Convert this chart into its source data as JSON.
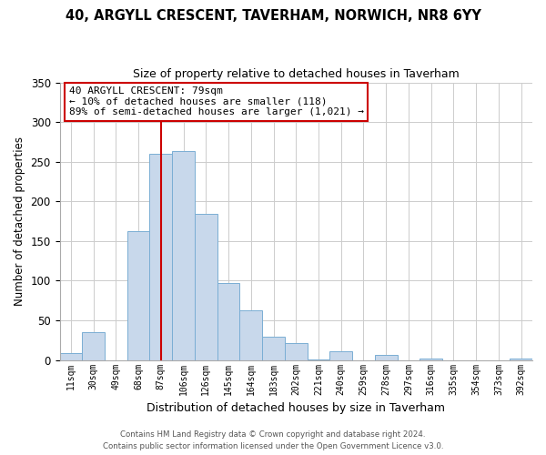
{
  "title": "40, ARGYLL CRESCENT, TAVERHAM, NORWICH, NR8 6YY",
  "subtitle": "Size of property relative to detached houses in Taverham",
  "xlabel": "Distribution of detached houses by size in Taverham",
  "ylabel": "Number of detached properties",
  "bin_labels": [
    "11sqm",
    "30sqm",
    "49sqm",
    "68sqm",
    "87sqm",
    "106sqm",
    "126sqm",
    "145sqm",
    "164sqm",
    "183sqm",
    "202sqm",
    "221sqm",
    "240sqm",
    "259sqm",
    "278sqm",
    "297sqm",
    "316sqm",
    "335sqm",
    "354sqm",
    "373sqm",
    "392sqm"
  ],
  "bar_heights": [
    9,
    35,
    0,
    162,
    260,
    263,
    184,
    97,
    63,
    29,
    21,
    1,
    11,
    0,
    6,
    0,
    2,
    0,
    0,
    0,
    2
  ],
  "bar_color": "#c8d8eb",
  "bar_edge_color": "#7aaed4",
  "vline_x_idx": 4,
  "vline_color": "#cc0000",
  "annotation_line1": "40 ARGYLL CRESCENT: 79sqm",
  "annotation_line2": "← 10% of detached houses are smaller (118)",
  "annotation_line3": "89% of semi-detached houses are larger (1,021) →",
  "annotation_box_color": "#ffffff",
  "annotation_box_edge": "#cc0000",
  "ylim": [
    0,
    350
  ],
  "yticks": [
    0,
    50,
    100,
    150,
    200,
    250,
    300,
    350
  ],
  "footer1": "Contains HM Land Registry data © Crown copyright and database right 2024.",
  "footer2": "Contains public sector information licensed under the Open Government Licence v3.0.",
  "bg_color": "#ffffff",
  "grid_color": "#cccccc"
}
